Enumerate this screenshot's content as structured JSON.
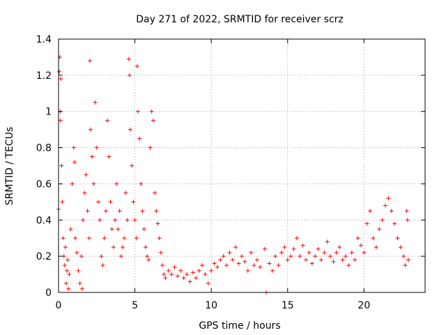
{
  "chart_data": {
    "type": "scatter",
    "title": "Day 271 of 2022, SRMTID for receiver scrz",
    "xlabel": "GPS time / hours",
    "ylabel": "SRMTID / TECUs",
    "xlim": [
      0,
      24
    ],
    "ylim": [
      0,
      1.4
    ],
    "xticks": [
      0,
      5,
      10,
      15,
      20
    ],
    "xtick_labels": [
      "0",
      "5",
      "10",
      "15",
      "20"
    ],
    "yticks": [
      0,
      0.2,
      0.4,
      0.6,
      0.8,
      1,
      1.2,
      1.4
    ],
    "ytick_labels": [
      "0",
      "0.2",
      "0.4",
      "0.6",
      "0.8",
      "1",
      "1.2",
      "1.4"
    ],
    "grid": true,
    "marker": "+",
    "color": "#ff0000",
    "series": [
      {
        "name": "SRMTID",
        "points": [
          [
            0.0,
            0.46
          ],
          [
            0.05,
            1.22
          ],
          [
            0.08,
            1.3
          ],
          [
            0.1,
            1.0
          ],
          [
            0.12,
            0.95
          ],
          [
            0.15,
            1.18
          ],
          [
            0.2,
            0.7
          ],
          [
            0.25,
            0.5
          ],
          [
            0.3,
            0.3
          ],
          [
            0.35,
            0.2
          ],
          [
            0.4,
            0.15
          ],
          [
            0.45,
            0.25
          ],
          [
            0.5,
            0.05
          ],
          [
            0.55,
            0.12
          ],
          [
            0.6,
            0.18
          ],
          [
            0.65,
            0.02
          ],
          [
            0.7,
            0.1
          ],
          [
            0.8,
            0.35
          ],
          [
            0.9,
            0.6
          ],
          [
            1.0,
            0.8
          ],
          [
            1.05,
            0.72
          ],
          [
            1.1,
            0.3
          ],
          [
            1.2,
            0.22
          ],
          [
            1.3,
            0.12
          ],
          [
            1.4,
            0.05
          ],
          [
            1.5,
            0.2
          ],
          [
            1.55,
            0.02
          ],
          [
            1.6,
            0.4
          ],
          [
            1.7,
            0.55
          ],
          [
            1.8,
            0.65
          ],
          [
            1.9,
            0.45
          ],
          [
            2.0,
            0.3
          ],
          [
            2.05,
            1.28
          ],
          [
            2.1,
            0.9
          ],
          [
            2.2,
            0.75
          ],
          [
            2.3,
            0.6
          ],
          [
            2.4,
            1.05
          ],
          [
            2.5,
            0.8
          ],
          [
            2.6,
            0.5
          ],
          [
            2.7,
            0.4
          ],
          [
            2.8,
            0.2
          ],
          [
            2.9,
            0.15
          ],
          [
            3.0,
            0.3
          ],
          [
            3.1,
            0.45
          ],
          [
            3.2,
            0.95
          ],
          [
            3.3,
            0.75
          ],
          [
            3.4,
            0.5
          ],
          [
            3.5,
            0.35
          ],
          [
            3.6,
            0.25
          ],
          [
            3.7,
            0.4
          ],
          [
            3.8,
            0.6
          ],
          [
            3.9,
            0.35
          ],
          [
            4.0,
            0.45
          ],
          [
            4.1,
            0.2
          ],
          [
            4.2,
            0.25
          ],
          [
            4.3,
            0.3
          ],
          [
            4.4,
            0.55
          ],
          [
            4.5,
            0.4
          ],
          [
            4.6,
            1.29
          ],
          [
            4.65,
            1.2
          ],
          [
            4.7,
            0.9
          ],
          [
            4.8,
            0.7
          ],
          [
            4.9,
            0.5
          ],
          [
            5.0,
            0.4
          ],
          [
            5.1,
            0.3
          ],
          [
            5.15,
            1.25
          ],
          [
            5.2,
            1.0
          ],
          [
            5.3,
            0.85
          ],
          [
            5.4,
            0.6
          ],
          [
            5.5,
            0.45
          ],
          [
            5.6,
            0.35
          ],
          [
            5.7,
            0.25
          ],
          [
            5.8,
            0.2
          ],
          [
            5.9,
            0.18
          ],
          [
            6.0,
            0.8
          ],
          [
            6.1,
            1.0
          ],
          [
            6.2,
            0.95
          ],
          [
            6.3,
            0.55
          ],
          [
            6.4,
            0.45
          ],
          [
            6.5,
            0.38
          ],
          [
            6.6,
            0.3
          ],
          [
            6.7,
            0.22
          ],
          [
            6.8,
            0.15
          ],
          [
            6.9,
            0.1
          ],
          [
            7.0,
            0.08
          ],
          [
            7.2,
            0.12
          ],
          [
            7.4,
            0.1
          ],
          [
            7.6,
            0.14
          ],
          [
            7.8,
            0.09
          ],
          [
            8.0,
            0.12
          ],
          [
            8.2,
            0.08
          ],
          [
            8.4,
            0.1
          ],
          [
            8.6,
            0.06
          ],
          [
            8.8,
            0.11
          ],
          [
            9.0,
            0.08
          ],
          [
            9.2,
            0.12
          ],
          [
            9.4,
            0.15
          ],
          [
            9.6,
            0.1
          ],
          [
            9.8,
            0.05
          ],
          [
            10.0,
            0.12
          ],
          [
            10.2,
            0.16
          ],
          [
            10.4,
            0.14
          ],
          [
            10.6,
            0.18
          ],
          [
            10.8,
            0.2
          ],
          [
            11.0,
            0.15
          ],
          [
            11.2,
            0.22
          ],
          [
            11.4,
            0.18
          ],
          [
            11.6,
            0.25
          ],
          [
            11.8,
            0.16
          ],
          [
            12.0,
            0.2
          ],
          [
            12.2,
            0.17
          ],
          [
            12.4,
            0.12
          ],
          [
            12.6,
            0.22
          ],
          [
            12.8,
            0.15
          ],
          [
            13.0,
            0.18
          ],
          [
            13.2,
            0.14
          ],
          [
            13.5,
            0.24
          ],
          [
            13.6,
            0.0
          ],
          [
            13.8,
            0.16
          ],
          [
            14.0,
            0.12
          ],
          [
            14.2,
            0.2
          ],
          [
            14.4,
            0.15
          ],
          [
            14.6,
            0.22
          ],
          [
            14.8,
            0.25
          ],
          [
            15.0,
            0.18
          ],
          [
            15.2,
            0.2
          ],
          [
            15.4,
            0.24
          ],
          [
            15.6,
            0.3
          ],
          [
            15.8,
            0.2
          ],
          [
            16.0,
            0.26
          ],
          [
            16.2,
            0.18
          ],
          [
            16.4,
            0.22
          ],
          [
            16.6,
            0.16
          ],
          [
            16.8,
            0.2
          ],
          [
            17.0,
            0.24
          ],
          [
            17.2,
            0.18
          ],
          [
            17.4,
            0.22
          ],
          [
            17.6,
            0.28
          ],
          [
            17.8,
            0.2
          ],
          [
            18.0,
            0.17
          ],
          [
            18.2,
            0.22
          ],
          [
            18.4,
            0.25
          ],
          [
            18.6,
            0.18
          ],
          [
            18.8,
            0.2
          ],
          [
            19.0,
            0.15
          ],
          [
            19.2,
            0.22
          ],
          [
            19.4,
            0.18
          ],
          [
            19.6,
            0.3
          ],
          [
            19.8,
            0.26
          ],
          [
            20.0,
            0.22
          ],
          [
            20.2,
            0.38
          ],
          [
            20.4,
            0.45
          ],
          [
            20.6,
            0.3
          ],
          [
            20.8,
            0.25
          ],
          [
            21.0,
            0.35
          ],
          [
            21.2,
            0.4
          ],
          [
            21.4,
            0.48
          ],
          [
            21.6,
            0.52
          ],
          [
            21.8,
            0.45
          ],
          [
            22.0,
            0.38
          ],
          [
            22.2,
            0.3
          ],
          [
            22.4,
            0.25
          ],
          [
            22.6,
            0.2
          ],
          [
            22.7,
            0.15
          ],
          [
            22.8,
            0.45
          ],
          [
            22.85,
            0.4
          ],
          [
            22.9,
            0.18
          ]
        ]
      }
    ]
  }
}
